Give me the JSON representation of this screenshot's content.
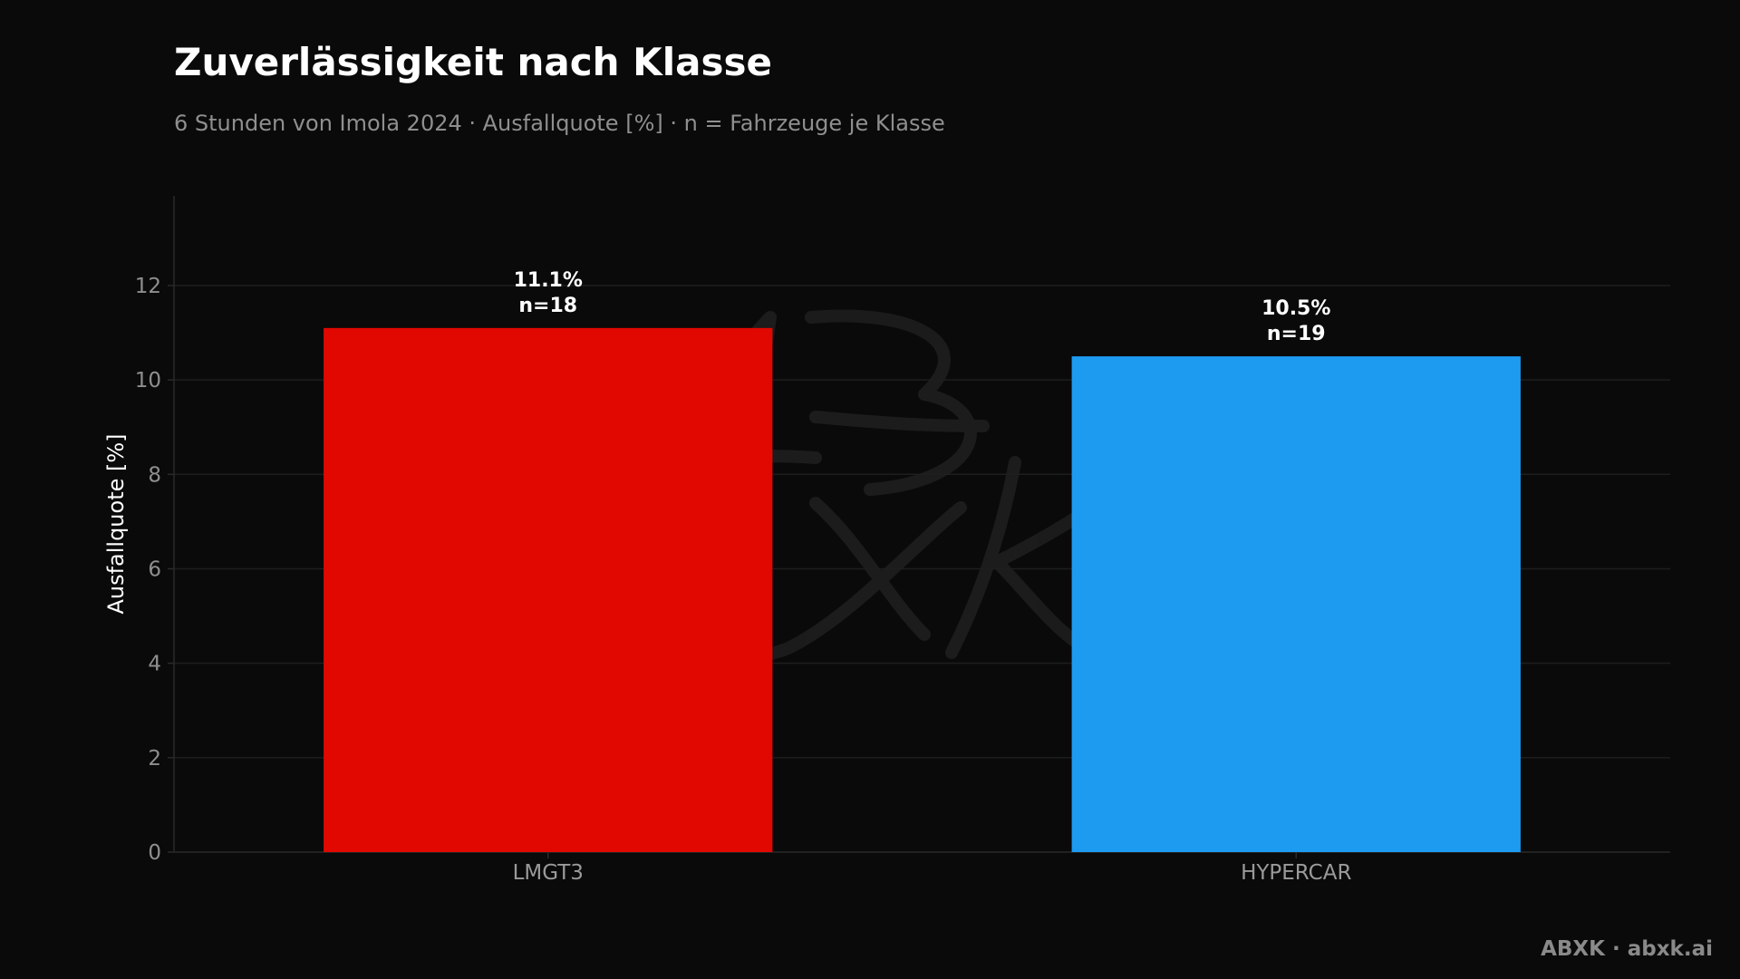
{
  "header": {
    "title": "Zuverlässigkeit nach Klasse",
    "subtitle": "6 Stunden von Imola 2024 · Ausfallquote [%] · n = Fahrzeuge je Klasse"
  },
  "footer": {
    "brand": "ABXK · abxk.ai"
  },
  "watermark": {
    "text": "ABXK"
  },
  "chart_data": {
    "type": "bar",
    "title": "Zuverlässigkeit nach Klasse",
    "subtitle": "6 Stunden von Imola 2024 · Ausfallquote [%] · n = Fahrzeuge je Klasse",
    "xlabel": "",
    "ylabel": "Ausfallquote [%]",
    "ylim": [
      0,
      13.9
    ],
    "yticks": [
      0,
      2,
      4,
      6,
      8,
      10,
      12
    ],
    "grid": true,
    "categories": [
      "LMGT3",
      "HYPERCAR"
    ],
    "values": [
      11.1,
      10.5
    ],
    "labels": [
      {
        "value_text": "11.1%",
        "n_text": "n=18"
      },
      {
        "value_text": "10.5%",
        "n_text": "n=19"
      }
    ],
    "colors": [
      "#e00800",
      "#1d9bf0"
    ]
  },
  "theme": {
    "background": "#0a0a0a",
    "grid_color": "#1e1e1e",
    "axis_color": "#2a2a2a"
  }
}
